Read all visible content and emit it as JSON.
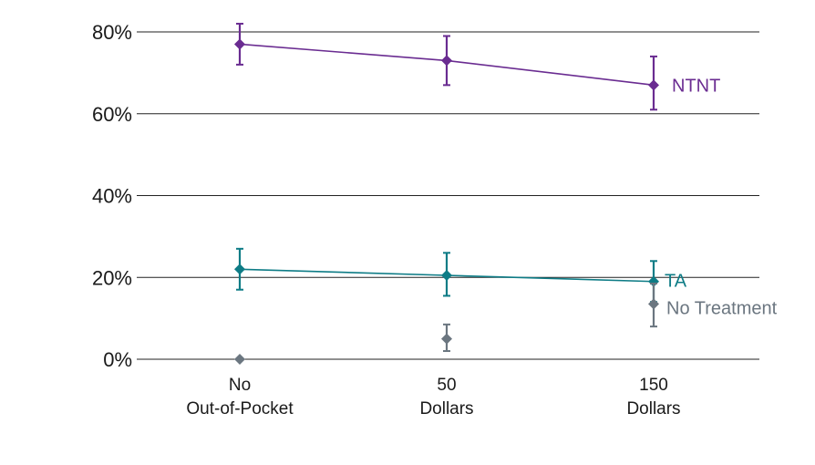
{
  "chart_data": {
    "type": "line",
    "categories": [
      [
        "No",
        "Out-of-Pocket"
      ],
      [
        "50",
        "Dollars"
      ],
      [
        "150",
        "Dollars"
      ]
    ],
    "ylim": [
      0,
      80
    ],
    "yticks": [
      0,
      20,
      40,
      60,
      80
    ],
    "ytick_labels": [
      "0%",
      "20%",
      "40%",
      "60%",
      "80%"
    ],
    "grid": true,
    "legend": "inline-right",
    "series": [
      {
        "name": "NTNT",
        "color": "#6a2c91",
        "values": [
          77,
          73,
          67
        ],
        "err_low": [
          72,
          67,
          61
        ],
        "err_high": [
          82,
          79,
          74
        ]
      },
      {
        "name": "TA",
        "color": "#0e7c86",
        "values": [
          22,
          20.5,
          19
        ],
        "err_low": [
          17,
          15.5,
          14
        ],
        "err_high": [
          27,
          26,
          24
        ]
      },
      {
        "name": "No Treatment",
        "color": "#6b7680",
        "values": [
          0,
          5,
          13.5
        ],
        "err_low": [
          0,
          2,
          8
        ],
        "err_high": [
          0,
          8.5,
          18.5
        ],
        "line": false
      }
    ]
  }
}
